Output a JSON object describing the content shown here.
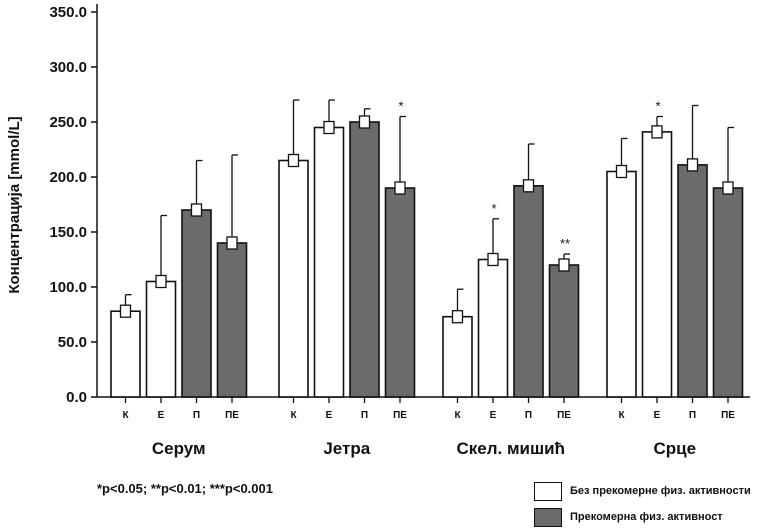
{
  "chart_data": {
    "type": "bar",
    "ylabel": "Концентрација [mmol/L]",
    "xlabel": "",
    "ylim": [
      0,
      350
    ],
    "yticks": [
      "0.0",
      "50.0",
      "100.0",
      "150.0",
      "200.0",
      "250.0",
      "300.0",
      "350.0"
    ],
    "grid": false,
    "groups": [
      "Серум",
      "Јетра",
      "Скел. мишић",
      "Срце"
    ],
    "categories": [
      "К",
      "Е",
      "П",
      "ПЕ"
    ],
    "colors": {
      "white": "#ffffff",
      "gray": "#6b6b6b",
      "outline": "#111111"
    },
    "series": [
      {
        "group": "Серум",
        "values": [
          78,
          105,
          170,
          140
        ],
        "errors": [
          93,
          165,
          215,
          220
        ],
        "fill": [
          "white",
          "white",
          "gray",
          "gray"
        ],
        "sig": [
          "",
          "",
          "",
          ""
        ]
      },
      {
        "group": "Јетра",
        "values": [
          215,
          245,
          250,
          190
        ],
        "errors": [
          270,
          270,
          262,
          255
        ],
        "fill": [
          "white",
          "white",
          "gray",
          "gray"
        ],
        "sig": [
          "",
          "",
          "",
          "*"
        ]
      },
      {
        "group": "Скел. мишић",
        "values": [
          73,
          125,
          192,
          120
        ],
        "errors": [
          98,
          162,
          230,
          130
        ],
        "fill": [
          "white",
          "white",
          "gray",
          "gray"
        ],
        "sig": [
          "",
          "*",
          "",
          "**"
        ]
      },
      {
        "group": "Срце",
        "values": [
          205,
          241,
          211,
          190
        ],
        "errors": [
          235,
          255,
          265,
          245
        ],
        "fill": [
          "white",
          "white",
          "gray",
          "gray"
        ],
        "sig": [
          "",
          "*",
          "",
          ""
        ]
      }
    ],
    "legend": [
      {
        "label": "Без прекомерне физ. активности",
        "fill": "white"
      },
      {
        "label": "Прекомерна физ. активност",
        "fill": "gray"
      }
    ],
    "legend_position": "bottom-right",
    "footnote": "*p<0.05; **p<0.01; ***p<0.001"
  }
}
